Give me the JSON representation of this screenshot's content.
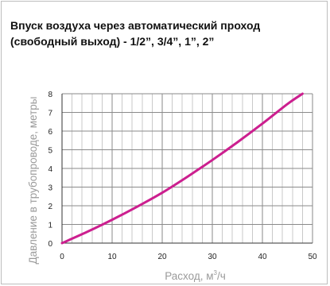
{
  "title_line1": "Впуск воздуха через автоматический проход",
  "title_line2": "(свободный выход) - 1/2”, 3/4”, 1”, 2”",
  "chart_data": {
    "type": "line",
    "xlabel_main": "Расход, м",
    "xlabel_sup": "3",
    "xlabel_tail": "/ч",
    "ylabel": "Давление в трубопроводе, метры",
    "xlim": [
      0,
      50
    ],
    "ylim": [
      0,
      8
    ],
    "xticks": [
      0,
      10,
      20,
      30,
      40,
      50
    ],
    "yticks": [
      0,
      1,
      2,
      3,
      4,
      5,
      6,
      7,
      8
    ],
    "grid": true,
    "series": [
      {
        "color": "#cc1f8f",
        "x": [
          0,
          5,
          10,
          15,
          20,
          25,
          30,
          35,
          40,
          45,
          48
        ],
        "y": [
          0,
          0.6,
          1.25,
          1.95,
          2.7,
          3.55,
          4.45,
          5.4,
          6.4,
          7.45,
          8.0
        ]
      }
    ]
  }
}
